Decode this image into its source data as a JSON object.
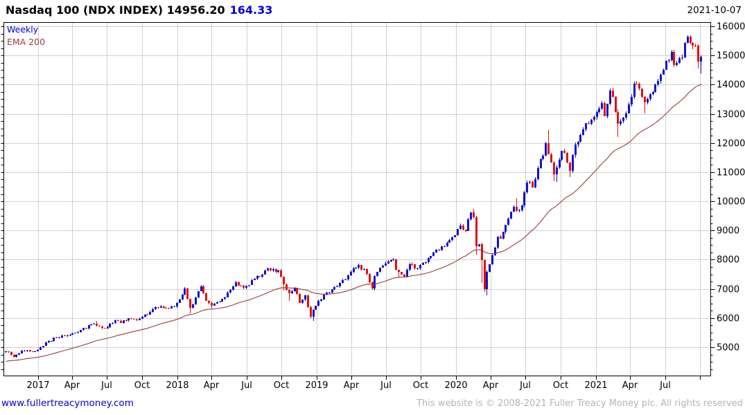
{
  "header": {
    "title": "Nasdaq 100 (NDX INDEX) 14956.20",
    "change": "164.33",
    "date": "2021-10-07"
  },
  "legend": {
    "timeframe": "Weekly",
    "ema": "EMA 200"
  },
  "footer": {
    "url": "www.fullertreacymoney.com",
    "copyright": "This website is © 2008-2021 Fuller Treacy Money plc. All rights reserved"
  },
  "colors": {
    "up": "#1212cc",
    "down": "#e01111",
    "ema": "#9a3b3b",
    "grid": "#d0d0d0",
    "axis": "#000000",
    "change_text": "#0000cc",
    "link": "#0000cc",
    "copyright_text": "#b4b4b4"
  },
  "chart_data": {
    "type": "candlestick",
    "title": "Nasdaq 100 (NDX INDEX)",
    "timeframe": "weekly",
    "last_close": 14956.2,
    "change": 164.33,
    "as_of": "2021-10-07",
    "start_week": "2016-10-10",
    "weeks": 261,
    "first_open": 4830,
    "y_axis": {
      "side": "right",
      "min": 4025,
      "max": 16140,
      "label_min": 5000,
      "label_max": 16000,
      "label_step": 1000,
      "minor_tick": 250,
      "grid": true,
      "labels": [
        "5000",
        "6000",
        "7000",
        "8000",
        "9000",
        "10000",
        "11000",
        "12000",
        "13000",
        "14000",
        "15000",
        "16000"
      ]
    },
    "x_axis": {
      "tick_unit": "quarter",
      "grid": true,
      "labels": [
        "2017",
        "Apr",
        "Jul",
        "Oct",
        "2018",
        "Apr",
        "Jul",
        "Oct",
        "2019",
        "Apr",
        "Jul",
        "Oct",
        "2020",
        "Apr",
        "Jul",
        "Oct",
        "2021",
        "Apr",
        "Jul",
        ""
      ]
    },
    "series": {
      "name": "NDX weekly close anchors [week_index, close]",
      "anchors": [
        [
          0,
          4850
        ],
        [
          3,
          4666
        ],
        [
          5,
          4797
        ],
        [
          8,
          4902
        ],
        [
          11,
          4863
        ],
        [
          14,
          5050
        ],
        [
          15,
          5166
        ],
        [
          19,
          5322
        ],
        [
          24,
          5437
        ],
        [
          28,
          5582
        ],
        [
          32,
          5789
        ],
        [
          34,
          5742
        ],
        [
          37,
          5647
        ],
        [
          41,
          5928
        ],
        [
          43,
          5831
        ],
        [
          46,
          5988
        ],
        [
          49,
          5933
        ],
        [
          51,
          6052
        ],
        [
          54,
          6215
        ],
        [
          58,
          6410
        ],
        [
          60,
          6341
        ],
        [
          63,
          6396
        ],
        [
          66,
          6790
        ],
        [
          67,
          7022
        ],
        [
          69,
          6344
        ],
        [
          71,
          6712
        ],
        [
          73,
          7097
        ],
        [
          75,
          6581
        ],
        [
          77,
          6433
        ],
        [
          81,
          6656
        ],
        [
          84,
          6960
        ],
        [
          86,
          7240
        ],
        [
          89,
          7040
        ],
        [
          93,
          7352
        ],
        [
          95,
          7408
        ],
        [
          98,
          7691
        ],
        [
          102,
          7627
        ],
        [
          103,
          7421
        ],
        [
          104,
          7157
        ],
        [
          106,
          6852
        ],
        [
          108,
          7040
        ],
        [
          110,
          6528
        ],
        [
          112,
          6770
        ],
        [
          114,
          6047
        ],
        [
          115,
          6285
        ],
        [
          116,
          6427
        ],
        [
          120,
          6869
        ],
        [
          124,
          7089
        ],
        [
          127,
          7331
        ],
        [
          129,
          7581
        ],
        [
          132,
          7828
        ],
        [
          135,
          7503
        ],
        [
          137,
          7012
        ],
        [
          138,
          7443
        ],
        [
          140,
          7729
        ],
        [
          142,
          7877
        ],
        [
          145,
          8017
        ],
        [
          146,
          7644
        ],
        [
          147,
          7577
        ],
        [
          149,
          7419
        ],
        [
          151,
          7855
        ],
        [
          154,
          7702
        ],
        [
          157,
          7913
        ],
        [
          160,
          8254
        ],
        [
          163,
          8450
        ],
        [
          167,
          8778
        ],
        [
          170,
          9173
        ],
        [
          172,
          8991
        ],
        [
          174,
          9623
        ],
        [
          175,
          9446
        ],
        [
          176,
          8461
        ],
        [
          177,
          8530
        ],
        [
          178,
          7996
        ],
        [
          179,
          6994
        ],
        [
          180,
          7588
        ],
        [
          182,
          8153
        ],
        [
          184,
          8787
        ],
        [
          185,
          8718
        ],
        [
          188,
          9413
        ],
        [
          190,
          9824
        ],
        [
          191,
          9663
        ],
        [
          193,
          9849
        ],
        [
          195,
          10650
        ],
        [
          197,
          10483
        ],
        [
          199,
          11139
        ],
        [
          201,
          11555
        ],
        [
          202,
          11995
        ],
        [
          203,
          11622
        ],
        [
          205,
          10936
        ],
        [
          206,
          11152
        ],
        [
          208,
          11726
        ],
        [
          209,
          11672
        ],
        [
          211,
          11052
        ],
        [
          213,
          11937
        ],
        [
          215,
          12268
        ],
        [
          216,
          12464
        ],
        [
          219,
          12807
        ],
        [
          220,
          12888
        ],
        [
          223,
          13366
        ],
        [
          224,
          12925
        ],
        [
          226,
          13807
        ],
        [
          227,
          13580
        ],
        [
          229,
          12669
        ],
        [
          231,
          12867
        ],
        [
          233,
          13330
        ],
        [
          235,
          14041
        ],
        [
          237,
          13860
        ],
        [
          239,
          13393
        ],
        [
          241,
          13686
        ],
        [
          243,
          14020
        ],
        [
          245,
          14345
        ],
        [
          247,
          14826
        ],
        [
          249,
          15112
        ],
        [
          250,
          14673
        ],
        [
          253,
          14945
        ],
        [
          255,
          15652
        ],
        [
          256,
          15441
        ],
        [
          257,
          15334
        ],
        [
          258,
          15330
        ],
        [
          259,
          14792
        ],
        [
          260,
          14956.2
        ]
      ],
      "high_overrides": {
        "34": 5898,
        "67": 7025,
        "73": 7140,
        "98": 7691,
        "103": 7674,
        "145": 8027,
        "175": 9736,
        "191": 10094,
        "203": 12439,
        "227": 13879,
        "255": 15675,
        "256": 15701
      },
      "low_overrides": {
        "3": 4656,
        "69": 6164,
        "77": 6325,
        "104": 6950,
        "106": 6580,
        "114": 6000,
        "115": 5895,
        "138": 6940,
        "147": 7360,
        "176": 8173,
        "178": 7194,
        "179": 6903,
        "180": 6772,
        "205": 10680,
        "206": 10660,
        "211": 10822,
        "229": 12208,
        "239": 13002,
        "259": 14544,
        "260": 14384
      }
    },
    "ema": {
      "name": "EMA 200",
      "period_weeks": 40,
      "init": 4500,
      "end_value_approx": 14050
    }
  }
}
